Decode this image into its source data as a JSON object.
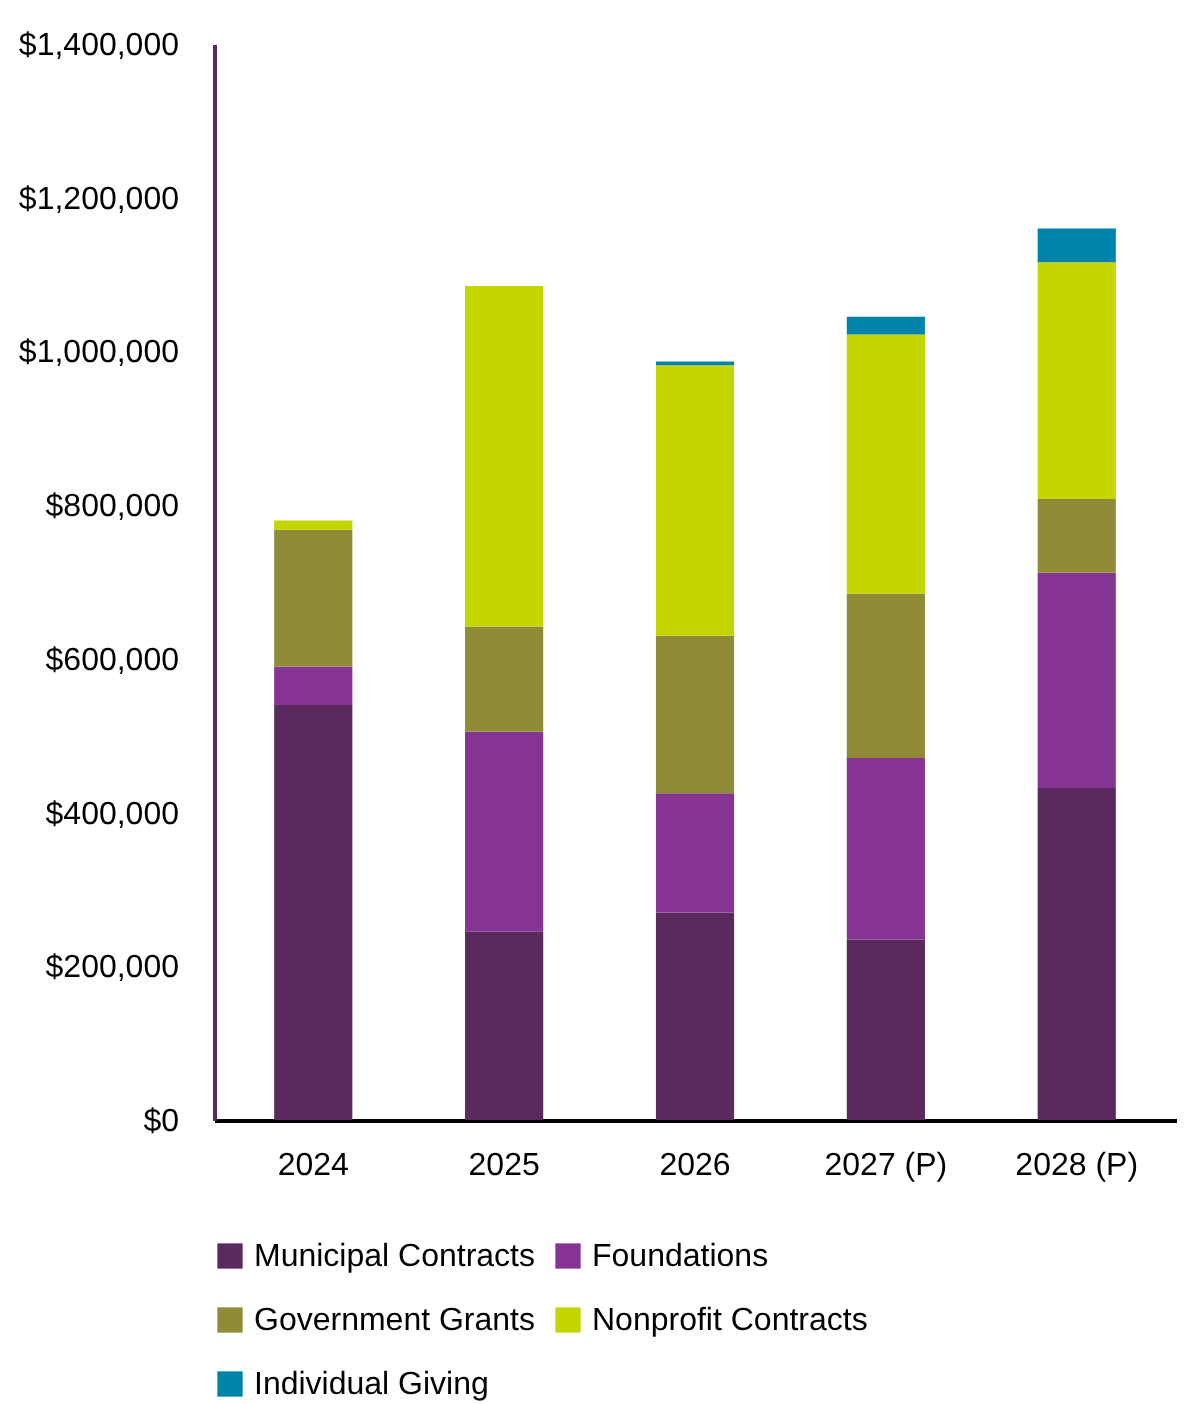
{
  "chart_data": {
    "type": "bar",
    "stacked": true,
    "categories": [
      "2024",
      "2025",
      "2026",
      "2027 (P)",
      "2028 (P)"
    ],
    "series": [
      {
        "name": "Municipal Contracts",
        "color": "#5a2a5e",
        "values": [
          540000,
          245000,
          270000,
          235000,
          432000
        ]
      },
      {
        "name": "Foundations",
        "color": "#853494",
        "values": [
          50000,
          260000,
          155000,
          236000,
          280000
        ]
      },
      {
        "name": "Government Grants",
        "color": "#8f8b37",
        "values": [
          178000,
          137000,
          205000,
          214000,
          96000
        ]
      },
      {
        "name": "Nonprofit Contracts",
        "color": "#c4d600",
        "values": [
          12000,
          443000,
          352000,
          337000,
          308000
        ]
      },
      {
        "name": "Individual Giving",
        "color": "#0083a9",
        "values": [
          0,
          0,
          5000,
          23000,
          44000
        ]
      }
    ],
    "ylim": [
      0,
      1400000
    ],
    "yticks": [
      {
        "value": 0,
        "label": "$0"
      },
      {
        "value": 200000,
        "label": "$200,000"
      },
      {
        "value": 400000,
        "label": "$400,000"
      },
      {
        "value": 600000,
        "label": "$600,000"
      },
      {
        "value": 800000,
        "label": "$800,000"
      },
      {
        "value": 1000000,
        "label": "$1,000,000"
      },
      {
        "value": 1200000,
        "label": "$1,200,000"
      },
      {
        "value": 1400000,
        "label": "$1,400,000"
      }
    ],
    "grid": false,
    "legend": "bottom"
  }
}
